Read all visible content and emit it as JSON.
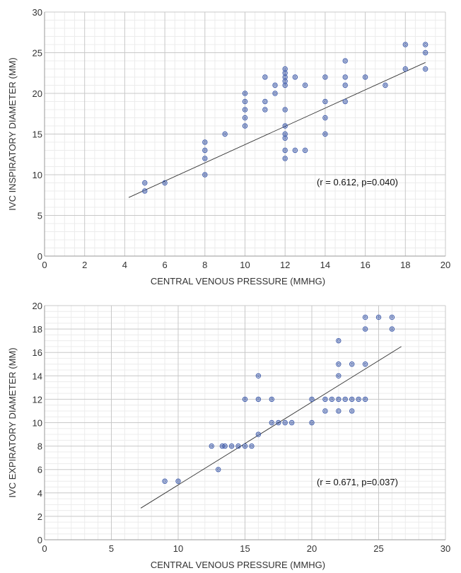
{
  "colors": {
    "point": "#3b58a8",
    "trend": "#333333",
    "major_grid": "#c8c8c8",
    "minor_grid": "#ececec",
    "axis": "#999999"
  },
  "chart_data": [
    {
      "type": "scatter",
      "xlabel": "CENTRAL VENOUS PRESSURE (MMHG)",
      "ylabel": "IVC INSPIRATORY DIAMETER (MM)",
      "xlim": [
        0,
        20
      ],
      "ylim": [
        0,
        30
      ],
      "xticks": [
        0,
        2,
        4,
        6,
        8,
        10,
        12,
        14,
        16,
        18,
        20
      ],
      "yticks": [
        0,
        5,
        10,
        15,
        20,
        25,
        30
      ],
      "x_tick_labels": [
        "0",
        "2",
        "4",
        "6",
        "8",
        "10",
        "12",
        "14",
        "16",
        "18",
        "20"
      ],
      "y_tick_labels": [
        "0",
        "5",
        "10",
        "15",
        "20",
        "25",
        "30"
      ],
      "grid": true,
      "annotation": "(r = 0.612, p=0.040)",
      "trendline": [
        [
          4.2,
          7.2
        ],
        [
          19,
          23.8
        ]
      ],
      "points": [
        [
          5,
          9
        ],
        [
          5,
          8
        ],
        [
          6,
          9
        ],
        [
          8,
          14
        ],
        [
          8,
          13
        ],
        [
          8,
          12
        ],
        [
          8,
          10
        ],
        [
          9,
          15
        ],
        [
          10,
          20
        ],
        [
          10,
          19
        ],
        [
          10,
          18
        ],
        [
          10,
          17
        ],
        [
          10,
          16
        ],
        [
          11,
          22
        ],
        [
          11,
          19
        ],
        [
          11,
          18
        ],
        [
          11.5,
          21
        ],
        [
          11.5,
          20
        ],
        [
          12,
          23
        ],
        [
          12,
          22.5
        ],
        [
          12,
          22
        ],
        [
          12,
          21.5
        ],
        [
          12,
          21
        ],
        [
          12,
          18
        ],
        [
          12,
          16
        ],
        [
          12,
          15
        ],
        [
          12,
          14.5
        ],
        [
          12,
          13
        ],
        [
          12,
          12
        ],
        [
          12.5,
          22
        ],
        [
          12.5,
          13
        ],
        [
          13,
          21
        ],
        [
          13,
          13
        ],
        [
          14,
          22
        ],
        [
          14,
          19
        ],
        [
          14,
          17
        ],
        [
          14,
          15
        ],
        [
          15,
          24
        ],
        [
          15,
          22
        ],
        [
          15,
          21
        ],
        [
          15,
          19
        ],
        [
          16,
          22
        ],
        [
          17,
          21
        ],
        [
          18,
          26
        ],
        [
          18,
          23
        ],
        [
          19,
          26
        ],
        [
          19,
          25
        ],
        [
          19,
          23
        ]
      ]
    },
    {
      "type": "scatter",
      "xlabel": "CENTRAL VENOUS PRESSURE (MMHG)",
      "ylabel": "IVC EXPIRATORY DIAMETER (MM)",
      "xlim": [
        0,
        30
      ],
      "ylim": [
        0,
        20
      ],
      "xticks": [
        0,
        5,
        10,
        15,
        20,
        25,
        30
      ],
      "yticks": [
        0,
        2,
        4,
        6,
        8,
        10,
        12,
        14,
        16,
        18,
        20
      ],
      "x_tick_labels": [
        "0",
        "5",
        "10",
        "15",
        "20",
        "25",
        "30"
      ],
      "y_tick_labels": [
        "0",
        "2",
        "4",
        "6",
        "8",
        "10",
        "12",
        "14",
        "16",
        "18",
        "20"
      ],
      "grid": true,
      "annotation": "(r = 0.671, p=0.037)",
      "trendline": [
        [
          7.2,
          2.7
        ],
        [
          26.7,
          16.5
        ]
      ],
      "points": [
        [
          9,
          5
        ],
        [
          10,
          5
        ],
        [
          12.5,
          8
        ],
        [
          13,
          6
        ],
        [
          13.3,
          8
        ],
        [
          13.5,
          8
        ],
        [
          14,
          8
        ],
        [
          14.5,
          8
        ],
        [
          15,
          12
        ],
        [
          15,
          8
        ],
        [
          15.5,
          8
        ],
        [
          16,
          14
        ],
        [
          16,
          12
        ],
        [
          16,
          9
        ],
        [
          17,
          12
        ],
        [
          17,
          10
        ],
        [
          17.5,
          10
        ],
        [
          18,
          10
        ],
        [
          18.5,
          10
        ],
        [
          20,
          12
        ],
        [
          20,
          10
        ],
        [
          21,
          12
        ],
        [
          21,
          11
        ],
        [
          21.5,
          12
        ],
        [
          22,
          17
        ],
        [
          22,
          15
        ],
        [
          22,
          14
        ],
        [
          22,
          12
        ],
        [
          22,
          11
        ],
        [
          22.5,
          12
        ],
        [
          23,
          15
        ],
        [
          23,
          12
        ],
        [
          23,
          11
        ],
        [
          23.5,
          12
        ],
        [
          24,
          19
        ],
        [
          24,
          18
        ],
        [
          24,
          15
        ],
        [
          24,
          12
        ],
        [
          25,
          19
        ],
        [
          26,
          19
        ],
        [
          26,
          18
        ]
      ]
    }
  ]
}
